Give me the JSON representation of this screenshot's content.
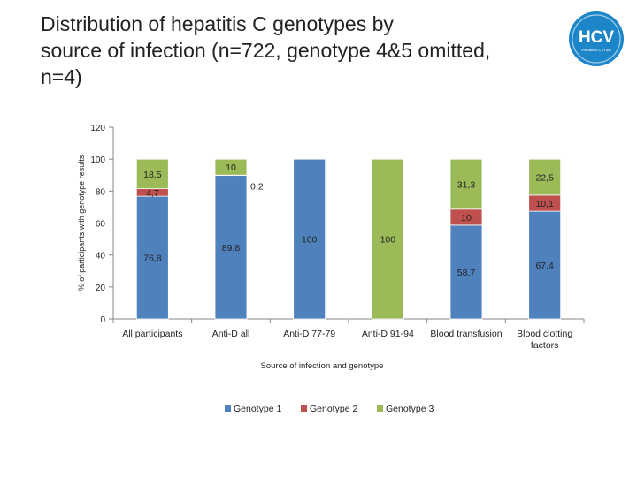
{
  "title": "Distribution of hepatitis C genotypes by\nsource of infection (n=722, genotype 4&5 omitted,\nn=4)",
  "logo": {
    "icon": "hcv-logo-icon",
    "text": "HCV",
    "tagline": "Hepatitis C Trust",
    "colors": [
      "#1d86c9",
      "#0d5f9b"
    ]
  },
  "chart_data": {
    "type": "bar",
    "stacked": true,
    "categories": [
      "All participants",
      "Anti-D all",
      "Anti-D 77-79",
      "Anti-D 91-94",
      "Blood transfusion",
      "Blood clotting factors"
    ],
    "series": [
      {
        "name": "Genotype 1",
        "color": "#4f81bd",
        "values": [
          76.8,
          89.8,
          100,
          0,
          58.7,
          67.4
        ],
        "labels": [
          "76,8",
          "89,8",
          "100",
          "",
          "58,7",
          "67,4"
        ]
      },
      {
        "name": "Genotype 2",
        "color": "#c0504d",
        "values": [
          4.7,
          0.2,
          0,
          0,
          10,
          10.1
        ],
        "labels": [
          "4,7",
          "0,2",
          "",
          "",
          "10",
          "10,1"
        ]
      },
      {
        "name": "Genotype 3",
        "color": "#9bbb59",
        "values": [
          18.5,
          10,
          0,
          100,
          31.3,
          22.5
        ],
        "labels": [
          "18,5",
          "10",
          "",
          "100",
          "31,3",
          "22,5"
        ]
      }
    ],
    "xlabel": "Source of infection and genotype",
    "ylabel": "% of participants with genotype results",
    "ylim": [
      0,
      120
    ],
    "yticks": [
      0,
      20,
      40,
      60,
      80,
      100,
      120
    ],
    "grid": false,
    "legend": "bottom"
  }
}
